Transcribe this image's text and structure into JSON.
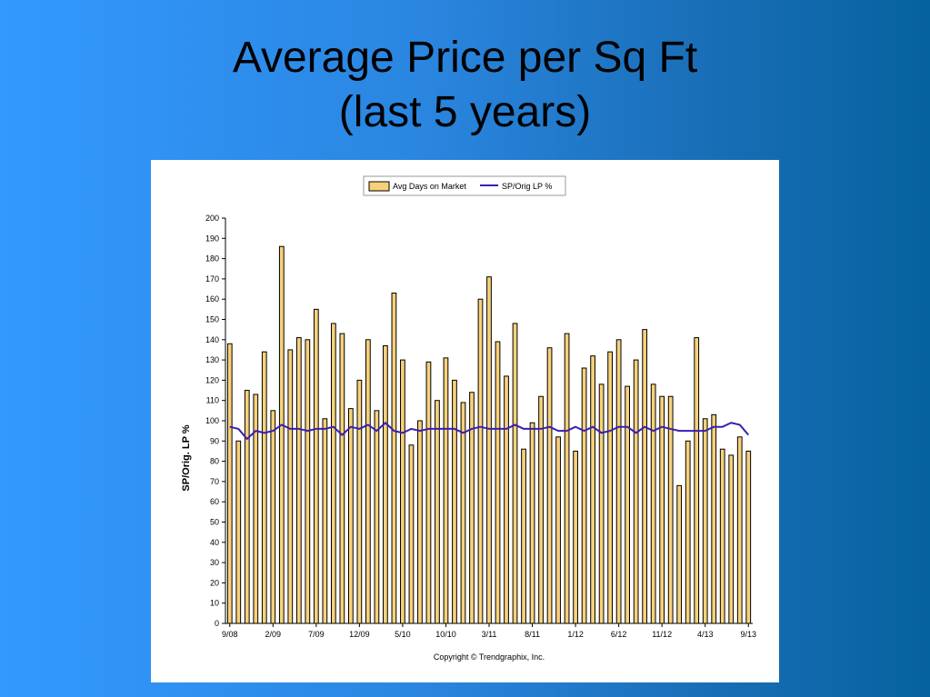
{
  "slide": {
    "title_line1": "Average Price per Sq Ft",
    "title_line2": "(last 5 years)"
  },
  "chart_data": {
    "type": "bar",
    "ylabel": "SP/Orig. LP %",
    "ylim": [
      0,
      200
    ],
    "ytick_step": 10,
    "legend": {
      "placement": "top-center",
      "bar_label": "Avg Days on Market",
      "line_label": "SP/Orig LP %"
    },
    "x_tick_labels": [
      "9/08",
      "2/09",
      "7/09",
      "12/09",
      "5/10",
      "10/10",
      "3/11",
      "8/11",
      "1/12",
      "6/12",
      "11/12",
      "4/13",
      "9/13"
    ],
    "x_tick_every": 5,
    "copyright": "Copyright © Trendgraphix, Inc.",
    "colors": {
      "bar_fill": "#f7d17a",
      "bar_stroke": "#000000",
      "line": "#3a1fb0"
    },
    "series": [
      {
        "name": "Avg Days on Market",
        "type": "bar",
        "values": [
          138,
          90,
          115,
          113,
          134,
          105,
          186,
          135,
          141,
          140,
          155,
          101,
          148,
          143,
          106,
          120,
          140,
          105,
          137,
          163,
          130,
          88,
          100,
          129,
          110,
          131,
          120,
          109,
          114,
          160,
          171,
          139,
          122,
          148,
          86,
          99,
          112,
          136,
          92,
          143,
          85,
          126,
          132,
          118,
          134,
          140,
          117,
          130,
          145,
          118,
          112,
          112,
          68,
          90,
          141,
          101,
          103,
          86,
          83,
          92,
          85
        ]
      },
      {
        "name": "SP/Orig LP %",
        "type": "line",
        "values": [
          97,
          96,
          91,
          95,
          94,
          95,
          98,
          96,
          96,
          95,
          96,
          96,
          97,
          93,
          97,
          96,
          98,
          95,
          99,
          95,
          94,
          96,
          95,
          96,
          96,
          96,
          96,
          94,
          96,
          97,
          96,
          96,
          96,
          98,
          96,
          96,
          96,
          97,
          95,
          95,
          97,
          95,
          97,
          94,
          95,
          97,
          97,
          94,
          97,
          95,
          97,
          96,
          95,
          95,
          95,
          95,
          97,
          97,
          99,
          98,
          93
        ]
      }
    ]
  }
}
